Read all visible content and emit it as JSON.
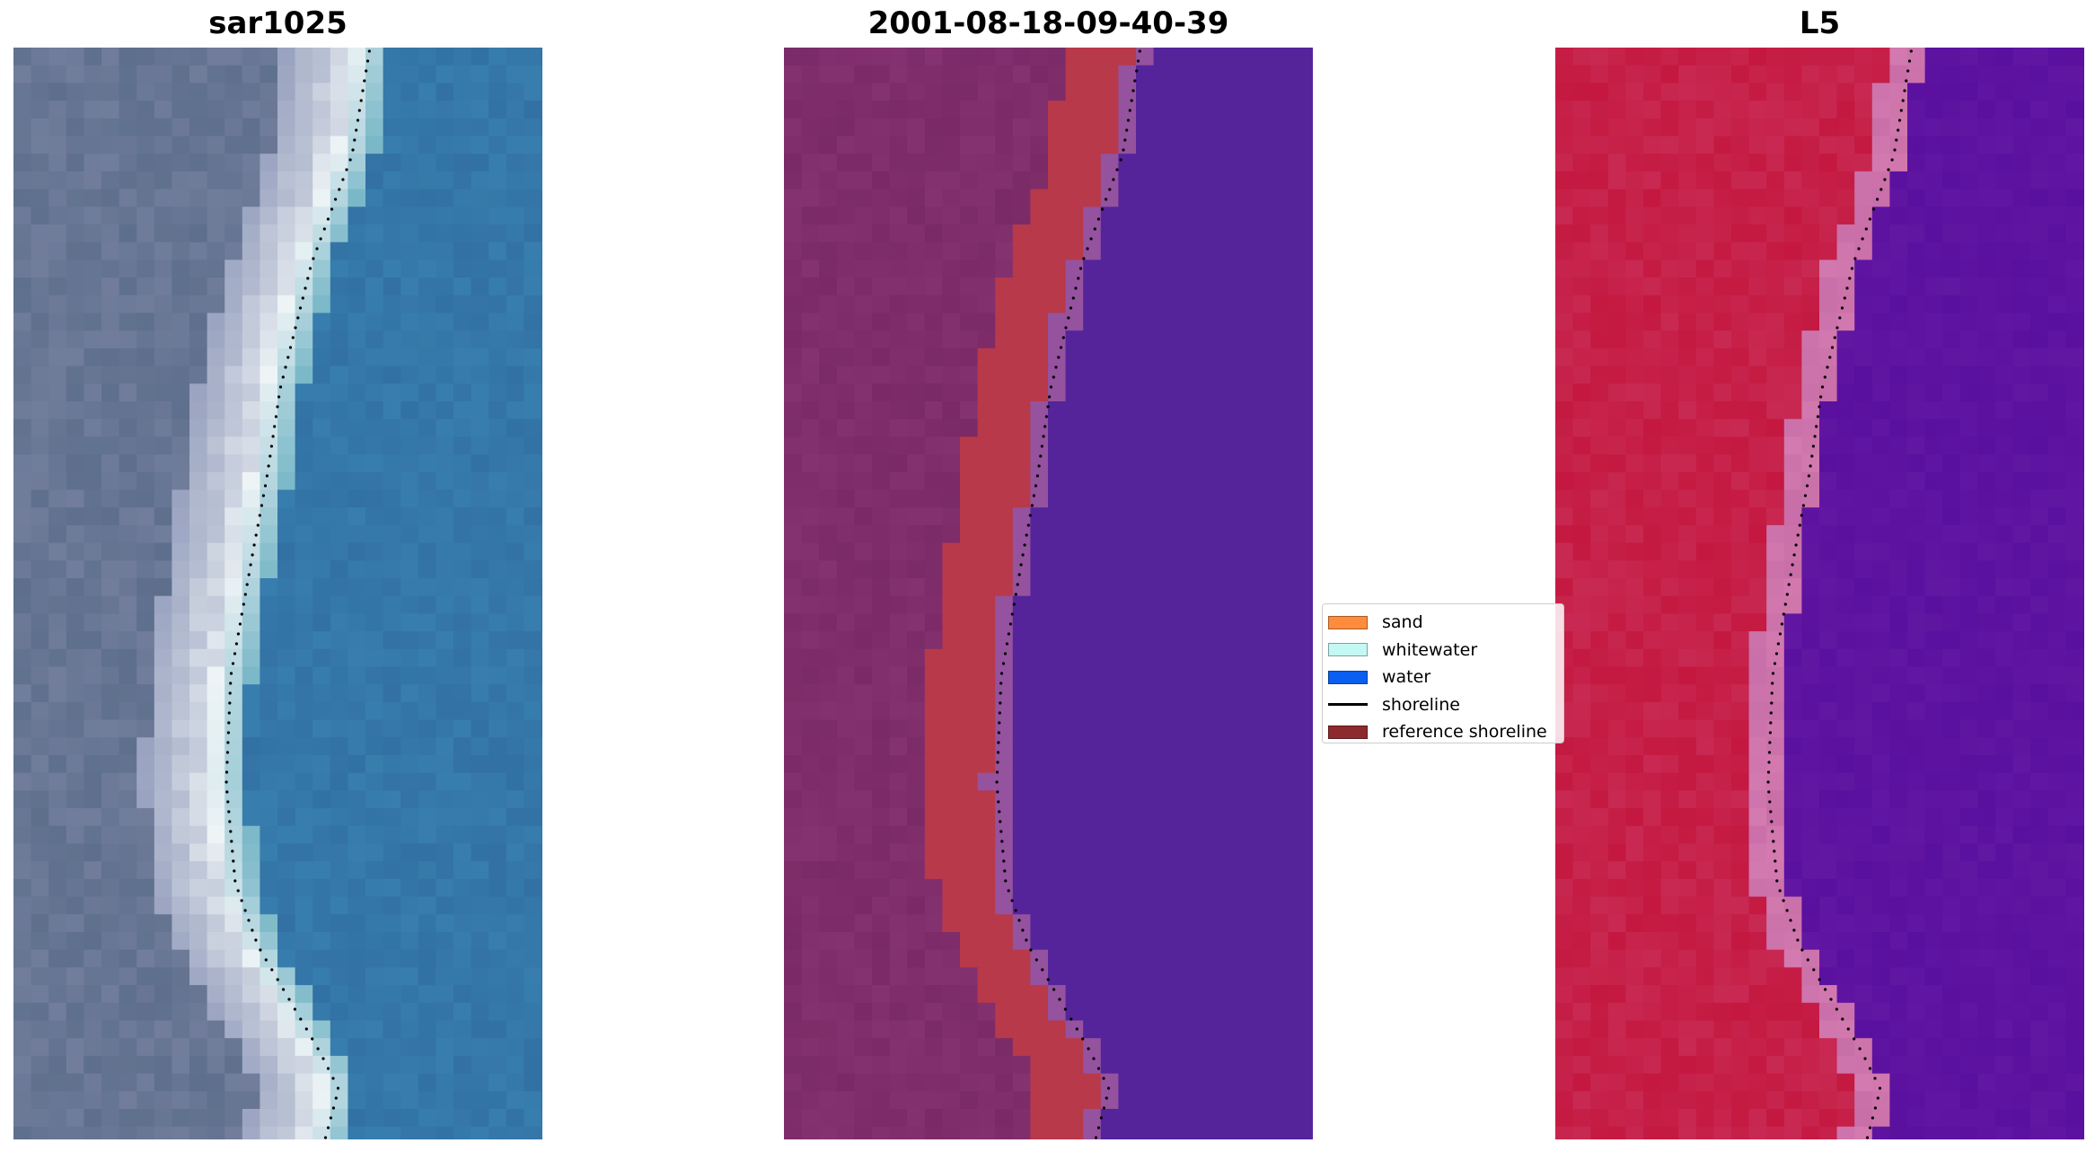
{
  "panels": [
    {
      "title": "sar1025",
      "kind": "satellite-image"
    },
    {
      "title": "2001-08-18-09-40-39",
      "kind": "classified-image"
    },
    {
      "title": "L5",
      "kind": "index-image"
    }
  ],
  "legend": {
    "items": [
      {
        "label": "sand",
        "color": "#ff8c3c",
        "type": "patch"
      },
      {
        "label": "whitewater",
        "color": "#c4f8f4",
        "type": "patch"
      },
      {
        "label": "water",
        "color": "#0a5ef0",
        "type": "patch"
      },
      {
        "label": "shoreline",
        "color": "#000000",
        "type": "line"
      },
      {
        "label": "reference shoreline",
        "color": "#8c2a2e",
        "type": "patch"
      }
    ]
  },
  "colors": {
    "land_sar": "#5d6f8c",
    "water_sar": "#3a86b4",
    "surf_sar": "#eef4f6",
    "land_cls": "#7a2a66",
    "sand_cls": "#b8394a",
    "water_cls": "#55249a",
    "land_l5": "#c41840",
    "water_l5": "#5a109e",
    "transition_l5": "#d37ab0",
    "shoreline_dots": "#000000"
  }
}
